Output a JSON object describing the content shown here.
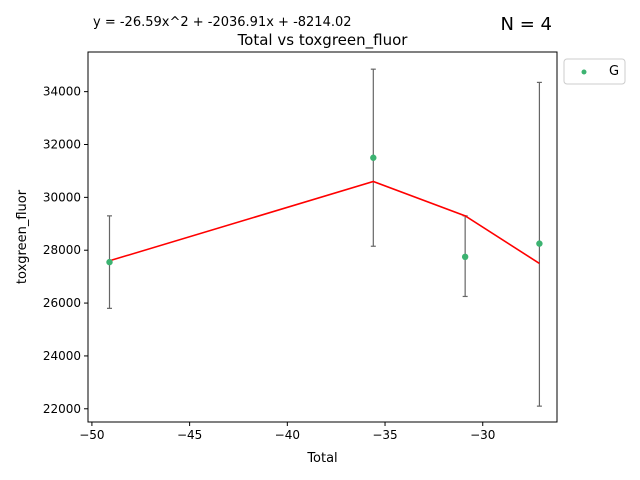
{
  "chart_data": {
    "type": "scatter",
    "title": "Total vs toxgreen_fluor",
    "equation": "y = -26.59x^2 + -2036.91x + -8214.02",
    "n_label": "N = 4",
    "xlabel": "Total",
    "ylabel": "toxgreen_fluor",
    "xlim": [
      -50.2,
      -26.2
    ],
    "ylim": [
      21500,
      35500
    ],
    "x_ticks": [
      -50,
      -45,
      -40,
      -35,
      -30
    ],
    "x_tick_labels": [
      "−50",
      "−45",
      "−40",
      "−35",
      "−30"
    ],
    "y_ticks": [
      22000,
      24000,
      26000,
      28000,
      30000,
      32000,
      34000
    ],
    "y_tick_labels": [
      "22000",
      "24000",
      "26000",
      "28000",
      "30000",
      "32000",
      "34000"
    ],
    "grid": false,
    "legend_position": "upper-right-outside",
    "series": [
      {
        "name": "G",
        "color": "#3cb371",
        "points": [
          {
            "x": -49.1,
            "y": 27550,
            "err_low": 25800,
            "err_high": 29300
          },
          {
            "x": -35.6,
            "y": 31500,
            "err_low": 28150,
            "err_high": 34850
          },
          {
            "x": -30.9,
            "y": 27750,
            "err_low": 26250,
            "err_high": 29300
          },
          {
            "x": -27.1,
            "y": 28250,
            "err_low": 22100,
            "err_high": 34350
          }
        ]
      }
    ],
    "fit_line": {
      "color": "#ff0000",
      "points": [
        {
          "x": -49.1,
          "y": 27600
        },
        {
          "x": -35.6,
          "y": 30600
        },
        {
          "x": -30.9,
          "y": 29300
        },
        {
          "x": -27.1,
          "y": 27500
        }
      ]
    },
    "errorbar_color": "#666666"
  }
}
